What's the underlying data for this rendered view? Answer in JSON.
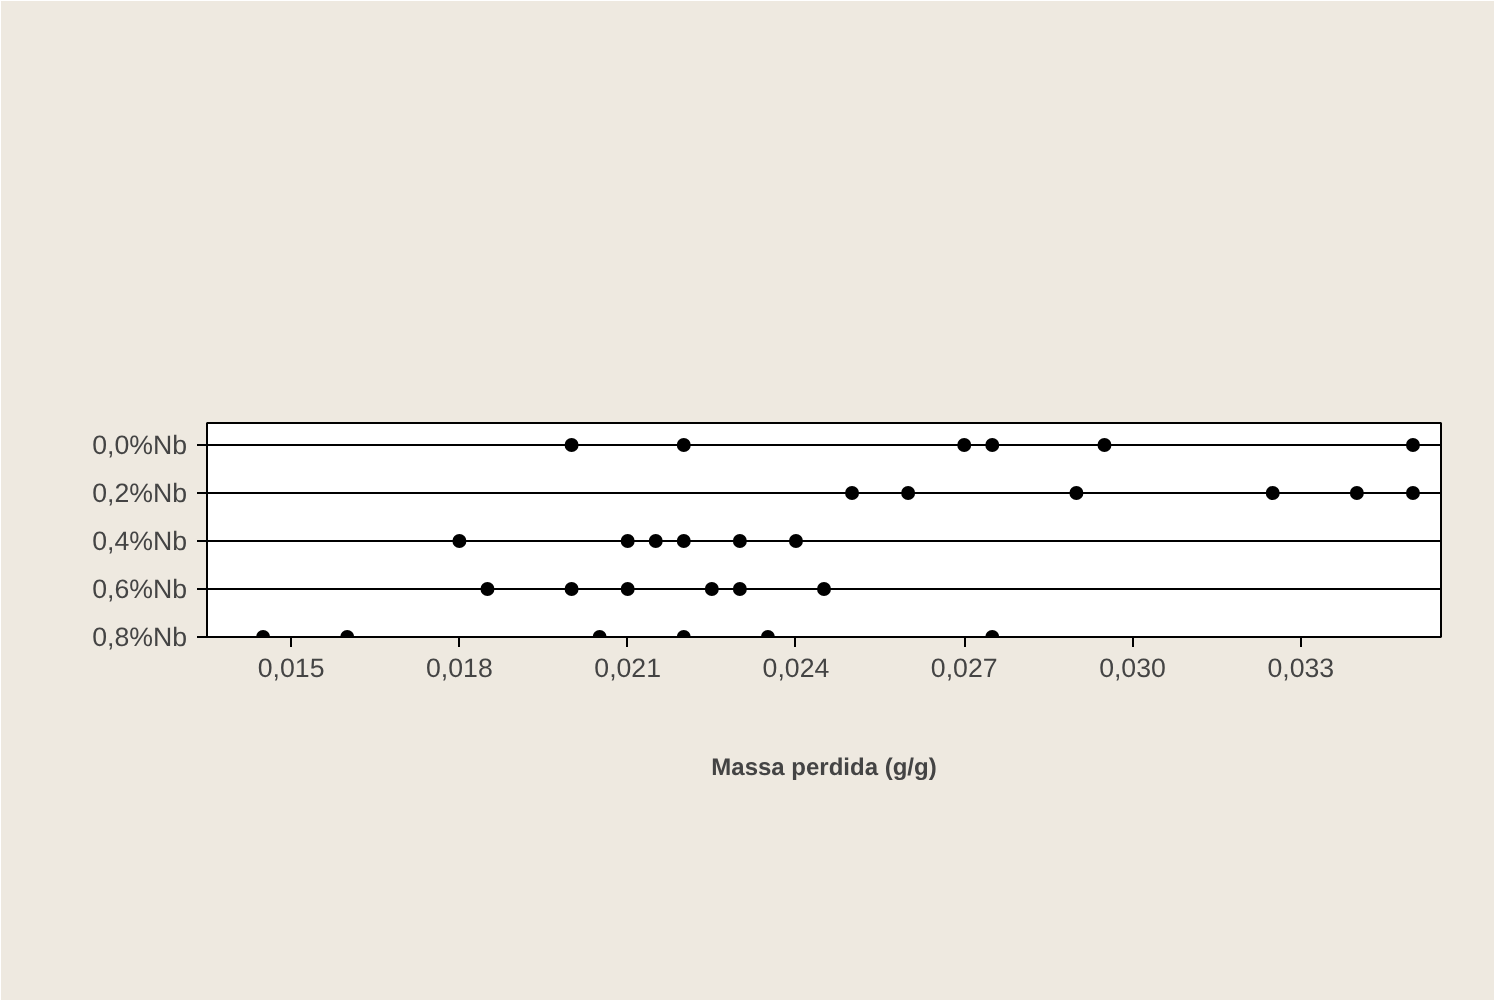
{
  "chart_data": {
    "type": "scatter",
    "orientation": "horizontal",
    "xlabel": "Massa perdida (g/g)",
    "categories": [
      "0,0%Nb",
      "0,2%Nb",
      "0,4%Nb",
      "0,6%Nb",
      "0,8%Nb"
    ],
    "xlim": [
      0.0135,
      0.0355
    ],
    "xticks": [
      {
        "value": 0.015,
        "label": "0,015"
      },
      {
        "value": 0.018,
        "label": "0,018"
      },
      {
        "value": 0.021,
        "label": "0,021"
      },
      {
        "value": 0.024,
        "label": "0,024"
      },
      {
        "value": 0.027,
        "label": "0,027"
      },
      {
        "value": 0.03,
        "label": "0,030"
      },
      {
        "value": 0.033,
        "label": "0,033"
      }
    ],
    "grid": "y",
    "marker": "circle",
    "series": [
      {
        "color": "#000000",
        "values": [
          0.02,
          0.025,
          0.018,
          0.0185,
          0.0145
        ]
      },
      {
        "color": "#000000",
        "values": [
          0.022,
          0.026,
          0.021,
          0.02,
          0.016
        ]
      },
      {
        "color": "#000000",
        "values": [
          0.027,
          0.029,
          0.0215,
          0.021,
          0.0205
        ]
      },
      {
        "color": "#000000",
        "values": [
          0.0275,
          0.0325,
          0.022,
          0.0225,
          0.022
        ]
      },
      {
        "color": "#000000",
        "values": [
          0.0295,
          0.034,
          0.023,
          0.023,
          0.0235
        ]
      },
      {
        "color": "#000000",
        "values": [
          0.035,
          0.035,
          0.024,
          0.0245,
          0.0275
        ]
      }
    ]
  }
}
